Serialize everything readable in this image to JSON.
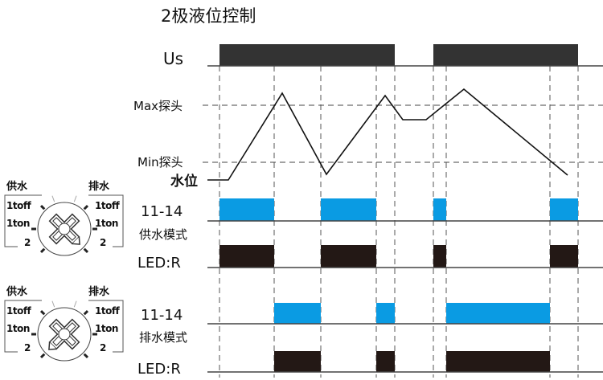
{
  "title": "2极液位控制",
  "labels": {
    "us": "Us",
    "max_probe": "Max探头",
    "min_probe": "Min探头",
    "water_level": "水位",
    "relay_1": "11-14",
    "mode_supply": "供水模式",
    "led_1": "LED:R",
    "relay_2": "11-14",
    "mode_drain": "排水模式",
    "led_2": "LED:R"
  },
  "dials": [
    {
      "left_title": "供水",
      "right_title": "排水",
      "left": [
        "1toff",
        "1ton",
        "2"
      ],
      "right": [
        "1toff",
        "1ton",
        "2"
      ],
      "pointer": "supply"
    },
    {
      "left_title": "供水",
      "right_title": "排水",
      "left": [
        "1toff",
        "1ton",
        "2"
      ],
      "right": [
        "1toff",
        "1ton",
        "2"
      ],
      "pointer": "drain"
    }
  ],
  "colors": {
    "relay_on": "#0a9be3",
    "led_on": "#231815",
    "power_on": "#333333"
  }
}
